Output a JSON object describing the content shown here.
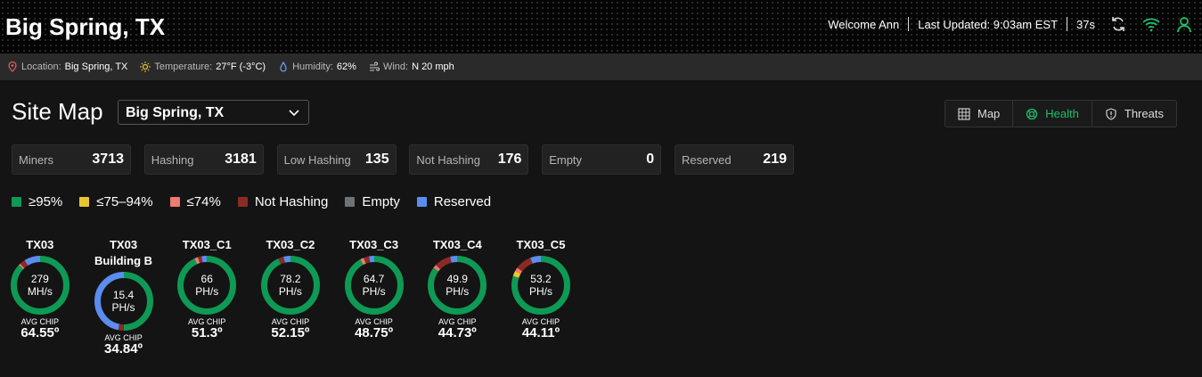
{
  "header": {
    "title": "Big Spring, TX",
    "welcome": "Welcome Ann",
    "last_updated": "Last Updated: 9:03am EST",
    "timer": "37s"
  },
  "conditions": [
    {
      "label": "Location:",
      "value": "Big Spring, TX"
    },
    {
      "label": "Temperature:",
      "value": "27°F (-3°C)"
    },
    {
      "label": "Humidity:",
      "value": "62%"
    },
    {
      "label": "Wind:",
      "value": "N 20 mph"
    }
  ],
  "site_map": {
    "title": "Site Map",
    "selector": "Big Spring, TX",
    "tabs": [
      "Map",
      "Health",
      "Threats"
    ],
    "active_tab": 1
  },
  "stats": [
    {
      "label": "Miners",
      "value": 3713
    },
    {
      "label": "Hashing",
      "value": 3181
    },
    {
      "label": "Low Hashing",
      "value": 135
    },
    {
      "label": "Not Hashing",
      "value": 176
    },
    {
      "label": "Empty",
      "value": 0
    },
    {
      "label": "Reserved",
      "value": 219
    }
  ],
  "legend": [
    {
      "label": "≥95%",
      "color": "#0e9a55"
    },
    {
      "label": "≤75–94%",
      "color": "#e8c630"
    },
    {
      "label": "≤74%",
      "color": "#ef7a70"
    },
    {
      "label": "Not Hashing",
      "color": "#8c2a25"
    },
    {
      "label": "Empty",
      "color": "#6f7378"
    },
    {
      "label": "Reserved",
      "color": "#5b8def"
    }
  ],
  "avg_chip_label": "AVG CHIP",
  "sites": [
    {
      "name": "TX03",
      "hashrate": 279,
      "unit": "MH/s",
      "avg_chip": "64.55º",
      "segments": [
        87,
        0,
        1,
        3,
        0,
        9
      ]
    },
    {
      "name": "TX03 Building B",
      "hashrate": 15.4,
      "unit": "PH/s",
      "avg_chip": "34.84º",
      "segments": [
        50,
        0,
        0,
        3,
        0,
        47
      ]
    },
    {
      "name": "TX03_C1",
      "hashrate": 66,
      "unit": "PH/s",
      "avg_chip": "51.3º",
      "segments": [
        93,
        0,
        2,
        2,
        0,
        3
      ]
    },
    {
      "name": "TX03_C2",
      "hashrate": 78.2,
      "unit": "PH/s",
      "avg_chip": "52.15º",
      "segments": [
        93,
        0,
        0,
        3,
        0,
        4
      ]
    },
    {
      "name": "TX03_C3",
      "hashrate": 64.7,
      "unit": "PH/s",
      "avg_chip": "48.75º",
      "segments": [
        92,
        0,
        2,
        3,
        0,
        3
      ]
    },
    {
      "name": "TX03_C4",
      "hashrate": 49.9,
      "unit": "PH/s",
      "avg_chip": "44.73º",
      "segments": [
        85,
        0,
        2,
        9,
        0,
        4
      ]
    },
    {
      "name": "TX03_C5",
      "hashrate": 53.2,
      "unit": "PH/s",
      "avg_chip": "44.11º",
      "segments": [
        80,
        3,
        2,
        9,
        0,
        6
      ]
    }
  ]
}
